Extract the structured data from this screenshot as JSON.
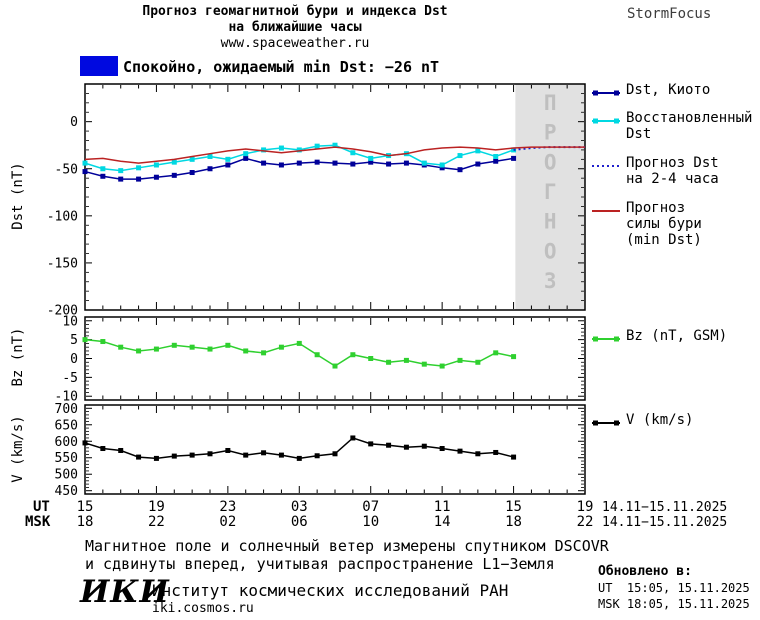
{
  "header": {
    "title": "Прогноз геомагнитной бури и индекса Dst",
    "subtitle": "на ближайшие часы",
    "site": "www.spaceweather.ru",
    "brand": "StormFocus"
  },
  "status": {
    "text": "Спокойно, ожидаемый min Dst: −26 nT",
    "swatch_color": "#0009e0"
  },
  "chart_data": [
    {
      "type": "line",
      "ylabel": "Dst (nT)",
      "ylim": [
        -200,
        40
      ],
      "yticks": [
        0,
        -50,
        -100,
        -150,
        -200
      ],
      "yminor": 10,
      "xlim": [
        15,
        43
      ],
      "xticks_t": [
        15,
        19,
        23,
        27,
        31,
        35,
        39,
        43
      ],
      "forecast_region": {
        "start": 39.1,
        "label": "ПРОГНОЗ",
        "fill": "#e1e1e1",
        "text_color": "#bfbfbf"
      },
      "series": [
        {
          "name": "Dst, Киото",
          "color": "#000099",
          "marker": "square",
          "x": [
            15,
            16,
            17,
            18,
            19,
            20,
            21,
            22,
            23,
            24,
            25,
            26,
            27,
            28,
            29,
            30,
            31,
            32,
            33,
            34,
            35,
            36,
            37,
            38,
            39
          ],
          "values": [
            -53,
            -58,
            -61,
            -61,
            -59,
            -57,
            -54,
            -50,
            -46,
            -39,
            -44,
            -46,
            -44,
            -43,
            -44,
            -45,
            -43,
            -45,
            -44,
            -46,
            -49,
            -51,
            -45,
            -42,
            -39
          ]
        },
        {
          "name": "Восстановленный Dst",
          "color": "#00d8e2",
          "marker": "square",
          "x": [
            15,
            16,
            17,
            18,
            19,
            20,
            21,
            22,
            23,
            24,
            25,
            26,
            27,
            28,
            29,
            30,
            31,
            32,
            33,
            34,
            35,
            36,
            37,
            38,
            39
          ],
          "values": [
            -44,
            -50,
            -52,
            -49,
            -46,
            -43,
            -40,
            -37,
            -40,
            -34,
            -30,
            -28,
            -30,
            -26,
            -25,
            -33,
            -39,
            -36,
            -34,
            -44,
            -46,
            -36,
            -31,
            -37,
            -30
          ]
        },
        {
          "name": "Прогноз Dst на 2-4 часа",
          "color": "#2020cc",
          "dash": "2,3",
          "width": 2,
          "x": [
            39,
            40,
            41,
            42,
            43
          ],
          "values": [
            -30,
            -28,
            -27,
            -27,
            -27
          ]
        },
        {
          "name": "Прогноз силы бури (min Dst)",
          "color": "#bb2222",
          "x": [
            15,
            16,
            17,
            18,
            19,
            20,
            21,
            22,
            23,
            24,
            25,
            26,
            27,
            28,
            29,
            30,
            31,
            32,
            33,
            34,
            35,
            36,
            37,
            38,
            39,
            40,
            41,
            42,
            43
          ],
          "values": [
            -40,
            -39,
            -42,
            -44,
            -42,
            -40,
            -37,
            -34,
            -31,
            -29,
            -31,
            -33,
            -31,
            -29,
            -27,
            -29,
            -32,
            -36,
            -34,
            -30,
            -28,
            -27,
            -28,
            -30,
            -28,
            -27,
            -27,
            -27,
            -27
          ]
        }
      ]
    },
    {
      "type": "line",
      "ylabel": "Bz (nT)",
      "ylim": [
        -11,
        11
      ],
      "yticks": [
        10,
        5,
        0,
        -5,
        -10
      ],
      "yminor": 1,
      "xlim": [
        15,
        43
      ],
      "xticks_t": [
        15,
        19,
        23,
        27,
        31,
        35,
        39,
        43
      ],
      "series": [
        {
          "name": "Bz (nT, GSM)",
          "color": "#2fd02f",
          "marker": "square",
          "x": [
            15,
            16,
            17,
            18,
            19,
            20,
            21,
            22,
            23,
            24,
            25,
            26,
            27,
            28,
            29,
            30,
            31,
            32,
            33,
            34,
            35,
            36,
            37,
            38,
            39
          ],
          "values": [
            5,
            4.5,
            3,
            2,
            2.5,
            3.5,
            3,
            2.5,
            3.5,
            2,
            1.5,
            3,
            4,
            1,
            -2,
            1,
            0,
            -1,
            -0.5,
            -1.5,
            -2,
            -0.5,
            -1,
            1.5,
            0.5
          ]
        }
      ]
    },
    {
      "type": "line",
      "ylabel": "V (km/s)",
      "ylim": [
        440,
        710
      ],
      "yticks": [
        700,
        650,
        600,
        550,
        500,
        450
      ],
      "yminor": 10,
      "xlim": [
        15,
        43
      ],
      "xticks_t": [
        15,
        19,
        23,
        27,
        31,
        35,
        39,
        43
      ],
      "series": [
        {
          "name": "V (km/s)",
          "color": "#000000",
          "marker": "square",
          "x": [
            15,
            16,
            17,
            18,
            19,
            20,
            21,
            22,
            23,
            24,
            25,
            26,
            27,
            28,
            29,
            30,
            31,
            32,
            33,
            34,
            35,
            36,
            37,
            38,
            39
          ],
          "values": [
            595,
            578,
            572,
            552,
            548,
            555,
            558,
            562,
            572,
            558,
            565,
            558,
            548,
            556,
            562,
            610,
            592,
            588,
            582,
            585,
            578,
            570,
            562,
            566,
            552
          ]
        }
      ]
    }
  ],
  "xaxis": {
    "ut_label": "UT",
    "msk_label": "MSK",
    "ut_ticks": [
      "15",
      "19",
      "23",
      "03",
      "07",
      "11",
      "15",
      "19"
    ],
    "msk_ticks": [
      "18",
      "22",
      "02",
      "06",
      "10",
      "14",
      "18",
      "22"
    ],
    "ut_date": "14.11−15.11.2025",
    "msk_date": "14.11−15.11.2025"
  },
  "legend": {
    "dst_kyoto": "Dst, Киото",
    "restored": "Восстановленный\nDst",
    "forecast_dst": "Прогноз Dst\nна 2-4 часа",
    "forecast_storm": "Прогноз\nсилы бури\n(min Dst)",
    "bz": "Bz (nT, GSM)",
    "v": "V (km/s)"
  },
  "footer": {
    "note_line1": "Магнитное поле и солнечный ветер измерены спутником DSCOVR",
    "note_line2": "и сдвинуты вперед, учитывая распространение L1−Земля",
    "logo": "ИКИ",
    "institute": "Институт космических исследований РАН",
    "institute_site": "iki.cosmos.ru",
    "updated_label": "Обновлено в:",
    "updated_ut": "UT  15:05, 15.11.2025",
    "updated_msk": "MSK 18:05, 15.11.2025"
  }
}
